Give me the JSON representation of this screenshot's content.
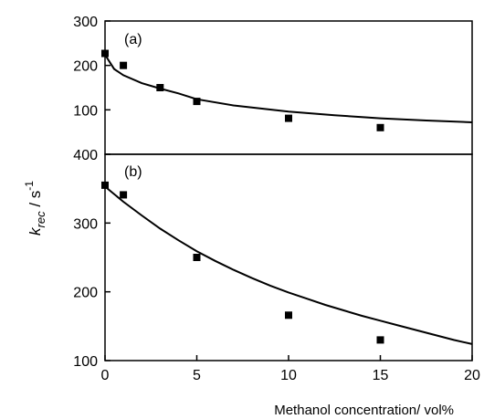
{
  "chart_data": [
    {
      "type": "scatter",
      "panel_label": "(a)",
      "xlim": [
        0,
        20
      ],
      "ylim": [
        0,
        300
      ],
      "yticks": [
        0,
        100,
        200,
        300
      ],
      "ytick_labels": [
        "",
        "100",
        "200",
        "300"
      ],
      "grid": false,
      "series": [
        {
          "marker": "square",
          "points": [
            [
              0,
              227
            ],
            [
              1,
              200
            ],
            [
              3,
              150
            ],
            [
              5,
              119
            ],
            [
              10,
              81
            ],
            [
              15,
              60
            ]
          ]
        },
        {
          "style": "line",
          "points": [
            [
              0,
              224
            ],
            [
              0.5,
              192
            ],
            [
              1,
              178
            ],
            [
              2,
              160
            ],
            [
              3,
              148
            ],
            [
              4,
              137
            ],
            [
              5,
              124
            ],
            [
              7,
              110
            ],
            [
              10,
              96
            ],
            [
              12.5,
              88
            ],
            [
              15,
              81
            ],
            [
              17.5,
              76
            ],
            [
              20,
              72
            ]
          ]
        }
      ]
    },
    {
      "type": "scatter",
      "panel_label": "(b)",
      "xlim": [
        0,
        20
      ],
      "ylim": [
        100,
        400
      ],
      "yticks": [
        100,
        200,
        300,
        400
      ],
      "ytick_labels": [
        "100",
        "200",
        "300",
        "400"
      ],
      "xticks": [
        0,
        5,
        10,
        15,
        20
      ],
      "xtick_labels": [
        "0",
        "5",
        "10",
        "15",
        "20"
      ],
      "xlabel": "Methanol concentration/ vol%",
      "grid": false,
      "series": [
        {
          "marker": "square",
          "points": [
            [
              0,
              355
            ],
            [
              1,
              341
            ],
            [
              5,
              250
            ],
            [
              10,
              166
            ],
            [
              15,
              130
            ]
          ]
        },
        {
          "style": "line",
          "points": [
            [
              0,
              353
            ],
            [
              1,
              331
            ],
            [
              2,
              311
            ],
            [
              3,
              292
            ],
            [
              4,
              275
            ],
            [
              5,
              259
            ],
            [
              6,
              245
            ],
            [
              7,
              232
            ],
            [
              8,
              220
            ],
            [
              9,
              209
            ],
            [
              10,
              199
            ],
            [
              11,
              190
            ],
            [
              12,
              181
            ],
            [
              13,
              173
            ],
            [
              14,
              165
            ],
            [
              15,
              158
            ],
            [
              16,
              151
            ],
            [
              17,
              144
            ],
            [
              18,
              137
            ],
            [
              19,
              130
            ],
            [
              20,
              124
            ]
          ]
        }
      ]
    }
  ],
  "shared": {
    "ylabel_main": "k",
    "ylabel_sub": "rec",
    "ylabel_unit": " / s",
    "ylabel_sup": "-1"
  }
}
